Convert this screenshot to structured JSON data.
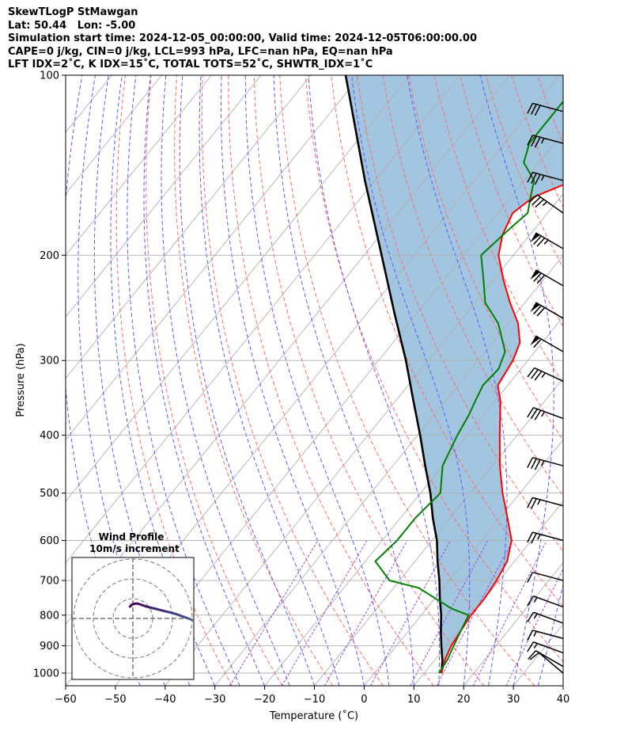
{
  "header": {
    "line1": "SkewTLogP StMawgan",
    "line2": "Lat: 50.44   Lon: -5.00",
    "line3": "Simulation start time: 2024-12-05_00:00:00, Valid time: 2024-12-05T06:00:00.00",
    "line4": "CAPE=0 j/kg, CIN=0 j/kg, LCL=993 hPa, LFC=nan hPa, EQ=nan hPa",
    "line5": "LFT IDX=2˚C, K IDX=15˚C, TOTAL TOTS=52˚C, SHWTR_IDX=1˚C"
  },
  "hodograph": {
    "title_line1": "Wind Profile",
    "title_line2": "10m/s increment",
    "trace": [
      [
        -1.5,
        6
      ],
      [
        -0.5,
        7
      ],
      [
        1,
        7.5
      ],
      [
        2.5,
        7.5
      ],
      [
        4,
        7
      ],
      [
        5.5,
        6.5
      ],
      [
        7,
        6
      ],
      [
        9,
        5.5
      ],
      [
        11,
        5
      ],
      [
        13,
        4.5
      ],
      [
        15,
        4
      ],
      [
        17,
        3.5
      ],
      [
        19,
        3
      ],
      [
        21,
        2.5
      ],
      [
        24,
        1.5
      ],
      [
        28,
        0
      ],
      [
        33,
        -2
      ],
      [
        38,
        -4
      ],
      [
        45,
        -7
      ]
    ],
    "colors": {
      "low": "#440154",
      "high": "#fde725"
    }
  },
  "chart_data": {
    "type": "line",
    "xlabel": "Temperature (˚C)",
    "ylabel": "Pressure (hPa)",
    "xlim": [
      -60,
      40
    ],
    "ylim": [
      1050,
      100
    ],
    "y_scale": "log",
    "x_ticks": [
      "−60",
      "−50",
      "−40",
      "−30",
      "−20",
      "−10",
      "0",
      "10",
      "20",
      "30",
      "40"
    ],
    "y_ticks": [
      "1000",
      "900",
      "800",
      "700",
      "600",
      "500",
      "400",
      "300",
      "200",
      "100"
    ],
    "grid": true,
    "series": [
      {
        "role": "temperature",
        "color": "#ff0000",
        "points": [
          [
            1000,
            13.5
          ],
          [
            950,
            12
          ],
          [
            900,
            11
          ],
          [
            850,
            10.5
          ],
          [
            800,
            10
          ],
          [
            750,
            10
          ],
          [
            700,
            9.5
          ],
          [
            650,
            8.5
          ],
          [
            600,
            6
          ],
          [
            550,
            1.5
          ],
          [
            500,
            -3.5
          ],
          [
            450,
            -8.5
          ],
          [
            400,
            -13.5
          ],
          [
            350,
            -19
          ],
          [
            330,
            -22
          ],
          [
            300,
            -23
          ],
          [
            280,
            -24.5
          ],
          [
            260,
            -28
          ],
          [
            240,
            -33
          ],
          [
            220,
            -38
          ],
          [
            200,
            -43
          ],
          [
            185,
            -45.5
          ],
          [
            170,
            -47
          ],
          [
            160,
            -45.5
          ],
          [
            150,
            -40
          ],
          [
            140,
            -35
          ],
          [
            130,
            -32
          ],
          [
            120,
            -29.5
          ],
          [
            110,
            -26
          ],
          [
            100,
            -25.5
          ]
        ]
      },
      {
        "role": "dewpoint",
        "color": "#008000",
        "points": [
          [
            1000,
            13
          ],
          [
            950,
            12.5
          ],
          [
            900,
            11.5
          ],
          [
            850,
            10.5
          ],
          [
            800,
            9.5
          ],
          [
            780,
            5
          ],
          [
            720,
            -5
          ],
          [
            700,
            -12
          ],
          [
            650,
            -18
          ],
          [
            600,
            -17
          ],
          [
            550,
            -17
          ],
          [
            500,
            -16
          ],
          [
            450,
            -20
          ],
          [
            400,
            -22
          ],
          [
            370,
            -23
          ],
          [
            350,
            -24
          ],
          [
            330,
            -25
          ],
          [
            310,
            -24.5
          ],
          [
            290,
            -26
          ],
          [
            260,
            -32
          ],
          [
            240,
            -38
          ],
          [
            220,
            -42
          ],
          [
            200,
            -46.5
          ],
          [
            180,
            -45
          ],
          [
            170,
            -44
          ],
          [
            160,
            -46
          ],
          [
            150,
            -48
          ],
          [
            140,
            -53
          ],
          [
            130,
            -55
          ],
          [
            120,
            -55
          ],
          [
            110,
            -55
          ],
          [
            100,
            -56
          ]
        ]
      },
      {
        "role": "parcel",
        "color": "#000000",
        "points": [
          [
            1000,
            13.5
          ],
          [
            950,
            11.5
          ],
          [
            900,
            9
          ],
          [
            850,
            6.5
          ],
          [
            800,
            4
          ],
          [
            750,
            1
          ],
          [
            700,
            -2
          ],
          [
            650,
            -5.5
          ],
          [
            600,
            -9
          ],
          [
            550,
            -13.5
          ],
          [
            500,
            -18
          ],
          [
            450,
            -23.5
          ],
          [
            400,
            -29.5
          ],
          [
            350,
            -36.5
          ],
          [
            300,
            -44.5
          ],
          [
            250,
            -54.5
          ],
          [
            200,
            -66.5
          ],
          [
            150,
            -82
          ],
          [
            100,
            -103
          ]
        ]
      }
    ],
    "wind_barbs": [
      {
        "p": 1000,
        "ws": 10,
        "wd": 310
      },
      {
        "p": 975,
        "ws": 10,
        "wd": 300
      },
      {
        "p": 925,
        "ws": 15,
        "wd": 290
      },
      {
        "p": 875,
        "ws": 15,
        "wd": 285
      },
      {
        "p": 825,
        "ws": 15,
        "wd": 290
      },
      {
        "p": 775,
        "ws": 15,
        "wd": 290
      },
      {
        "p": 700,
        "ws": 10,
        "wd": 285
      },
      {
        "p": 600,
        "ws": 25,
        "wd": 285
      },
      {
        "p": 525,
        "ws": 25,
        "wd": 285
      },
      {
        "p": 450,
        "ws": 35,
        "wd": 285
      },
      {
        "p": 375,
        "ws": 35,
        "wd": 290
      },
      {
        "p": 325,
        "ws": 35,
        "wd": 295
      },
      {
        "p": 290,
        "ws": 60,
        "wd": 300
      },
      {
        "p": 255,
        "ws": 70,
        "wd": 300
      },
      {
        "p": 225,
        "ws": 70,
        "wd": 300
      },
      {
        "p": 195,
        "ws": 75,
        "wd": 300
      },
      {
        "p": 170,
        "ws": 35,
        "wd": 305
      },
      {
        "p": 150,
        "ws": 35,
        "wd": 285
      },
      {
        "p": 130,
        "ws": 35,
        "wd": 285
      },
      {
        "p": 115,
        "ws": 30,
        "wd": 285
      }
    ]
  }
}
